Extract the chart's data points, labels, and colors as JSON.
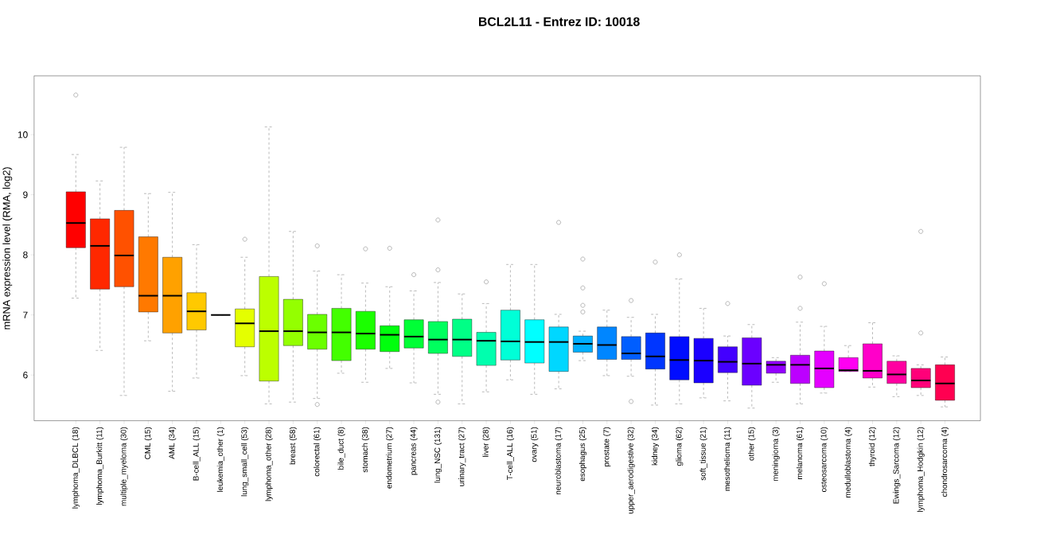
{
  "chart_data": {
    "type": "box",
    "title": "BCL2L11  -  Entrez ID: 10018",
    "ylabel": "mRNA expression level (RMA, log2)",
    "categories": [
      "lymphoma_DLBCL (18)",
      "lymphoma_Burkitt (11)",
      "multiple_myeloma (30)",
      "CML (15)",
      "AML (34)",
      "B-cell_ALL (15)",
      "leukemia_other (1)",
      "lung_small_cell (53)",
      "lymphoma_other (28)",
      "breast (58)",
      "colorectal (61)",
      "bile_duct (8)",
      "stomach (38)",
      "endometrium (27)",
      "pancreas (44)",
      "lung_NSC (131)",
      "urinary_tract (27)",
      "liver (28)",
      "T-cell_ALL (16)",
      "ovary (51)",
      "neuroblastoma (17)",
      "esophagus (25)",
      "prostate (7)",
      "upper_aerodigestive (32)",
      "kidney (34)",
      "glioma (62)",
      "soft_tissue (21)",
      "mesothelioma (11)",
      "other (15)",
      "meningioma (3)",
      "melanoma (61)",
      "osteosarcoma (10)",
      "medulloblastoma (4)",
      "thyroid (12)",
      "Ewings_Sarcoma (12)",
      "lymphoma_Hodgkin (12)",
      "chondrosarcoma (4)"
    ],
    "boxes": [
      {
        "low": 7.28,
        "q1": 8.12,
        "median": 8.53,
        "q3": 9.05,
        "high": 9.67,
        "outliers": [
          10.66
        ]
      },
      {
        "low": 6.41,
        "q1": 7.43,
        "median": 8.15,
        "q3": 8.6,
        "high": 9.23
      },
      {
        "low": 5.66,
        "q1": 7.47,
        "median": 7.99,
        "q3": 8.74,
        "high": 9.79
      },
      {
        "low": 6.57,
        "q1": 7.05,
        "median": 7.32,
        "q3": 8.3,
        "high": 9.02
      },
      {
        "low": 5.73,
        "q1": 6.7,
        "median": 7.32,
        "q3": 7.96,
        "high": 9.04
      },
      {
        "low": 5.95,
        "q1": 6.75,
        "median": 7.06,
        "q3": 7.37,
        "high": 8.17
      },
      {
        "low": 7.0,
        "q1": 7.0,
        "median": 7.0,
        "q3": 7.0,
        "high": 7.0
      },
      {
        "low": 5.99,
        "q1": 6.47,
        "median": 6.86,
        "q3": 7.1,
        "high": 7.96,
        "outliers": [
          8.26
        ]
      },
      {
        "low": 5.52,
        "q1": 5.9,
        "median": 6.73,
        "q3": 7.64,
        "high": 10.13
      },
      {
        "low": 5.55,
        "q1": 6.49,
        "median": 6.73,
        "q3": 7.26,
        "high": 8.39
      },
      {
        "low": 5.61,
        "q1": 6.43,
        "median": 6.71,
        "q3": 7.01,
        "high": 7.73,
        "outliers": [
          8.15,
          5.51
        ]
      },
      {
        "low": 6.03,
        "q1": 6.24,
        "median": 6.71,
        "q3": 7.11,
        "high": 7.67
      },
      {
        "low": 5.88,
        "q1": 6.43,
        "median": 6.69,
        "q3": 7.06,
        "high": 7.53,
        "outliers": [
          8.1
        ]
      },
      {
        "low": 6.11,
        "q1": 6.39,
        "median": 6.67,
        "q3": 6.82,
        "high": 7.47,
        "outliers": [
          8.11
        ]
      },
      {
        "low": 5.87,
        "q1": 6.45,
        "median": 6.64,
        "q3": 6.92,
        "high": 7.4,
        "outliers": [
          7.67
        ]
      },
      {
        "low": 5.68,
        "q1": 6.36,
        "median": 6.59,
        "q3": 6.89,
        "high": 7.54,
        "outliers": [
          8.58,
          7.75,
          5.55
        ]
      },
      {
        "low": 5.52,
        "q1": 6.31,
        "median": 6.59,
        "q3": 6.93,
        "high": 7.35
      },
      {
        "low": 5.72,
        "q1": 6.16,
        "median": 6.57,
        "q3": 6.71,
        "high": 7.19,
        "outliers": [
          7.55
        ]
      },
      {
        "low": 5.92,
        "q1": 6.25,
        "median": 6.56,
        "q3": 7.08,
        "high": 7.84
      },
      {
        "low": 5.68,
        "q1": 6.2,
        "median": 6.55,
        "q3": 6.92,
        "high": 7.84
      },
      {
        "low": 5.77,
        "q1": 6.06,
        "median": 6.55,
        "q3": 6.8,
        "high": 7.01,
        "outliers": [
          8.54
        ]
      },
      {
        "low": 6.24,
        "q1": 6.38,
        "median": 6.52,
        "q3": 6.65,
        "high": 6.73,
        "outliers": [
          7.93,
          7.45,
          7.16,
          7.05
        ]
      },
      {
        "low": 5.99,
        "q1": 6.26,
        "median": 6.5,
        "q3": 6.8,
        "high": 7.08
      },
      {
        "low": 5.98,
        "q1": 6.26,
        "median": 6.36,
        "q3": 6.64,
        "high": 6.96,
        "outliers": [
          7.24,
          5.56
        ]
      },
      {
        "low": 5.5,
        "q1": 6.1,
        "median": 6.31,
        "q3": 6.7,
        "high": 7.01,
        "outliers": [
          7.88
        ]
      },
      {
        "low": 5.52,
        "q1": 5.92,
        "median": 6.25,
        "q3": 6.64,
        "high": 7.6,
        "outliers": [
          8.0
        ]
      },
      {
        "low": 5.62,
        "q1": 5.87,
        "median": 6.24,
        "q3": 6.61,
        "high": 7.11
      },
      {
        "low": 5.57,
        "q1": 6.04,
        "median": 6.22,
        "q3": 6.47,
        "high": 6.65,
        "outliers": [
          7.19
        ]
      },
      {
        "low": 5.45,
        "q1": 5.83,
        "median": 6.19,
        "q3": 6.62,
        "high": 6.84
      },
      {
        "low": 5.88,
        "q1": 6.03,
        "median": 6.17,
        "q3": 6.23,
        "high": 6.29
      },
      {
        "low": 5.52,
        "q1": 5.86,
        "median": 6.17,
        "q3": 6.33,
        "high": 6.88,
        "outliers": [
          7.63,
          7.11
        ]
      },
      {
        "low": 5.7,
        "q1": 5.79,
        "median": 6.11,
        "q3": 6.4,
        "high": 6.81,
        "outliers": [
          7.52
        ]
      },
      {
        "low": 6.06,
        "q1": 6.06,
        "median": 6.08,
        "q3": 6.29,
        "high": 6.49
      },
      {
        "low": 5.8,
        "q1": 5.95,
        "median": 6.07,
        "q3": 6.52,
        "high": 6.87
      },
      {
        "low": 5.64,
        "q1": 5.86,
        "median": 6.01,
        "q3": 6.23,
        "high": 6.32
      },
      {
        "low": 5.66,
        "q1": 5.79,
        "median": 5.91,
        "q3": 6.11,
        "high": 6.17,
        "outliers": [
          8.39,
          6.7
        ]
      },
      {
        "low": 5.47,
        "q1": 5.58,
        "median": 5.86,
        "q3": 6.17,
        "high": 6.3
      }
    ],
    "colors": [
      "#ff0000",
      "#ff2800",
      "#ff5100",
      "#ff7900",
      "#ffa100",
      "#ffc900",
      "#000000",
      "#e4ff00",
      "#bcff00",
      "#94ff00",
      "#6bff00",
      "#43ff00",
      "#1bff00",
      "#00ff0d",
      "#00ff36",
      "#00ff5e",
      "#00ff86",
      "#00ffae",
      "#00ffd7",
      "#00ffff",
      "#00d7ff",
      "#00aeff",
      "#0086ff",
      "#005eff",
      "#0036ff",
      "#000dff",
      "#1b00ff",
      "#4300ff",
      "#6b00ff",
      "#9400ff",
      "#bc00ff",
      "#e400ff",
      "#ff00f2",
      "#ff00c9",
      "#ff00a1",
      "#ff0079",
      "#ff0051"
    ],
    "ylim": [
      5.24,
      10.98
    ],
    "yticks": [
      6,
      7,
      8,
      9,
      10
    ]
  }
}
